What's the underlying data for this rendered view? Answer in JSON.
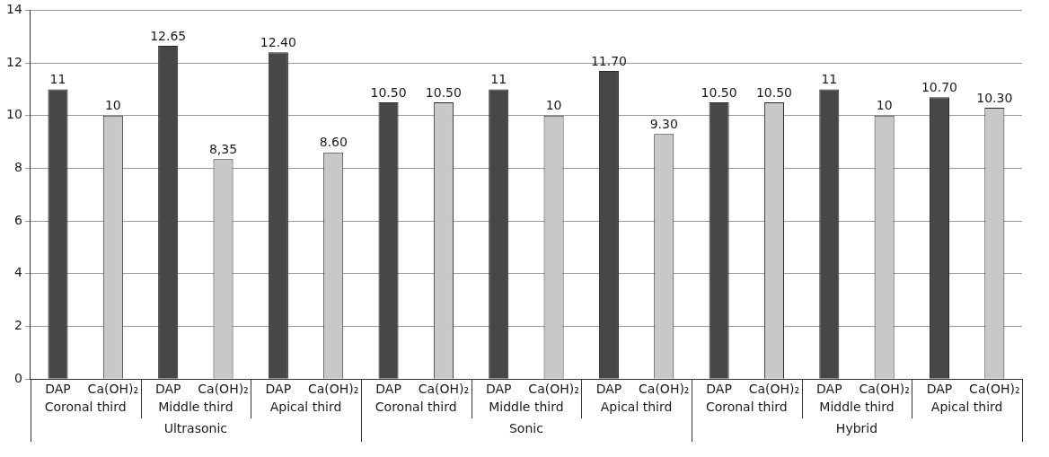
{
  "chart_data": {
    "type": "bar",
    "categories": [
      "DAP",
      "Ca(OH)₂",
      "DAP",
      "Ca(OH)₂",
      "DAP",
      "Ca(OH)₂",
      "DAP",
      "Ca(OH)₂",
      "DAP",
      "Ca(OH)₂",
      "DAP",
      "Ca(OH)₂",
      "DAP",
      "Ca(OH)₂",
      "DAP",
      "Ca(OH)₂",
      "DAP",
      "Ca(OH)₂"
    ],
    "values": [
      11,
      10,
      12.65,
      8.35,
      12.4,
      8.6,
      10.5,
      10.5,
      11,
      10,
      11.7,
      9.3,
      10.5,
      10.5,
      11,
      10,
      10.7,
      10.3
    ],
    "colors": [
      "#474747",
      "#c8c8c8",
      "#474747",
      "#c8c8c8",
      "#474747",
      "#c8c8c8",
      "#474747",
      "#c8c8c8",
      "#474747",
      "#c8c8c8",
      "#474747",
      "#c8c8c8",
      "#474747",
      "#c8c8c8",
      "#474747",
      "#c8c8c8",
      "#474747",
      "#c8c8c8"
    ],
    "value_labels": [
      "11",
      "10",
      "12.65",
      "8,35",
      "12.40",
      "8.60",
      "10.50",
      "10.50",
      "11",
      "10",
      "11.70",
      "9.30",
      "10.50",
      "10.50",
      "11",
      "10",
      "10.70",
      "10.30"
    ],
    "annotations": [
      "Coronal third",
      "Middle third",
      "Apical third",
      "Coronal third",
      "Middle third",
      "Apical third",
      "Coronal third",
      "Middle third",
      "Apical third",
      "Ultrasonic",
      "Sonic",
      "Hybrid"
    ],
    "ylim": [
      0,
      14
    ],
    "yticks": [
      0,
      2,
      4,
      6,
      8,
      10,
      12,
      14
    ],
    "grid": "y",
    "legend": false
  }
}
